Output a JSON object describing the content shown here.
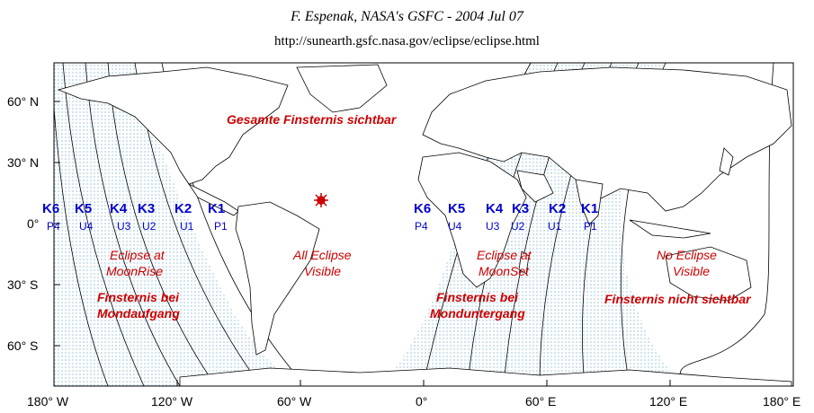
{
  "header": {
    "title": "F. Espenak, NASA's GSFC - 2004 Jul 07",
    "url": "http://sunearth.gsfc.nasa.gov/eclipse/eclipse.html"
  },
  "axes": {
    "latitude_labels": [
      "60° N",
      "30° N",
      "0°",
      "30° S",
      "60° S"
    ],
    "longitude_labels": [
      "180° W",
      "120° W",
      "60° W",
      "0°",
      "60° E",
      "120° E",
      "180° E"
    ]
  },
  "contacts_left": [
    {
      "k": "K6",
      "p": "P4"
    },
    {
      "k": "K5",
      "p": "U4"
    },
    {
      "k": "K4",
      "p": "U3"
    },
    {
      "k": "K3",
      "p": "U2"
    },
    {
      "k": "K2",
      "p": "U1"
    },
    {
      "k": "K1",
      "p": "P1"
    }
  ],
  "contacts_right": [
    {
      "k": "K6",
      "p": "P4"
    },
    {
      "k": "K5",
      "p": "U4"
    },
    {
      "k": "K4",
      "p": "U3"
    },
    {
      "k": "K3",
      "p": "U2"
    },
    {
      "k": "K2",
      "p": "U1"
    },
    {
      "k": "K1",
      "p": "P1"
    }
  ],
  "annotations": {
    "total_visible_de": "Gesamte Finsternis sichtbar",
    "moonrise_en_1": "Eclipse at",
    "moonrise_en_2": "MoonRise",
    "moonrise_de_1": "Finsternis  bei",
    "moonrise_de_2": "Mondaufgang",
    "all_visible_en_1": "All Eclipse",
    "all_visible_en_2": "Visible",
    "moonset_en_1": "Eclipse at",
    "moonset_en_2": "MoonSet",
    "moonset_de_1": "Finsternis bei",
    "moonset_de_2": "Monduntergang",
    "none_en_1": "No Eclipse",
    "none_en_2": "Visible",
    "none_de": "Finsternis nicht sichtbar"
  },
  "colors": {
    "shade_dot": "#5aa0c8",
    "annotation": "#cc0000",
    "contact_label": "#0000cc",
    "subsolar_marker": "#cc0000"
  }
}
